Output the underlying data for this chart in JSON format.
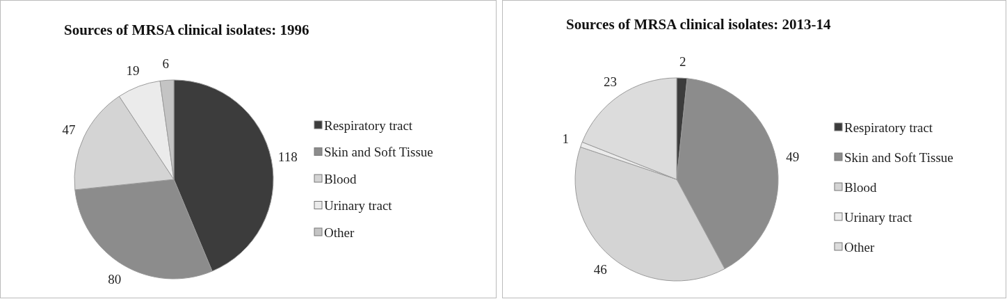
{
  "chart_data": [
    {
      "type": "pie",
      "title": "Sources of MRSA clinical isolates: 1996",
      "categories": [
        "Respiratory tract",
        "Skin and Soft Tissue",
        "Blood",
        "Urinary tract",
        "Other"
      ],
      "values": [
        118,
        80,
        47,
        19,
        6
      ],
      "colors": [
        "#3c3c3c",
        "#8c8c8c",
        "#d4d4d4",
        "#ebebeb",
        "#c4c4c4"
      ],
      "data_labels": true,
      "legend": "right"
    },
    {
      "type": "pie",
      "title": "Sources of MRSA clinical isolates: 2013-14",
      "categories": [
        "Respiratory tract",
        "Skin and Soft Tissue",
        "Blood",
        "Urinary tract",
        "Other"
      ],
      "values": [
        2,
        49,
        46,
        1,
        23
      ],
      "colors": [
        "#3c3c3c",
        "#8c8c8c",
        "#d4d4d4",
        "#ebebeb",
        "#dcdcdc"
      ],
      "data_labels": true,
      "legend": "right"
    }
  ]
}
